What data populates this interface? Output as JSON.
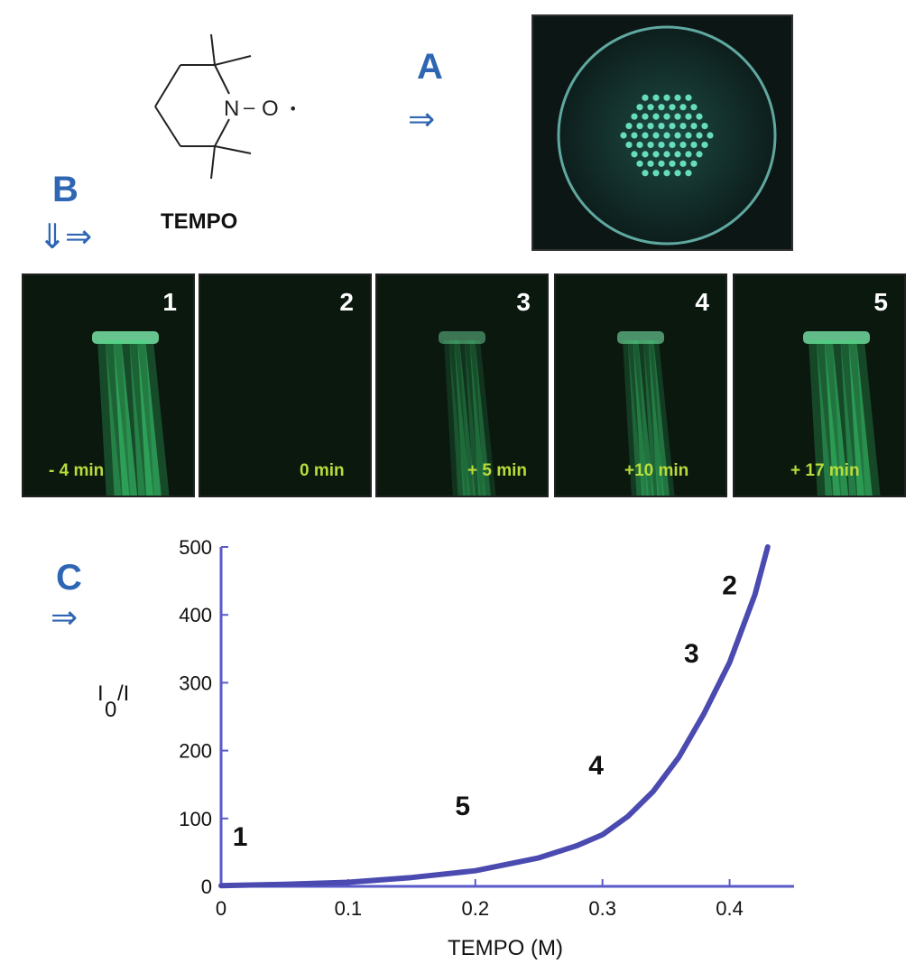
{
  "structure": {
    "label": "TEMPO",
    "atom_n": "N",
    "atom_o": "O",
    "bond_dash": "–",
    "radical_dot": "•"
  },
  "sections": {
    "a": "A",
    "b": "B",
    "c": "C"
  },
  "arrows": {
    "right": "⇒",
    "down": "⇓"
  },
  "panels": [
    {
      "number": "1",
      "time": "- 4 min",
      "glow": 1.0
    },
    {
      "number": "2",
      "time": "0 min",
      "glow": 0.0
    },
    {
      "number": "3",
      "time": "+ 5 min",
      "glow": 0.55
    },
    {
      "number": "4",
      "time": "+10 min",
      "glow": 0.7
    },
    {
      "number": "5",
      "time": "+ 17 min",
      "glow": 0.95
    }
  ],
  "colors": {
    "accent_blue": "#2f66b3",
    "curve": "#4a4ab0",
    "axis": "#5a5ac8",
    "fluorescence": "#3fe07a",
    "time_label": "#b9dc3a"
  },
  "chart_data": {
    "type": "line",
    "xlabel": "TEMPO (M)",
    "ylabel_main": "I",
    "ylabel_sub": "0",
    "ylabel_tail": "/I",
    "xlim": [
      0,
      0.45
    ],
    "ylim": [
      0,
      500
    ],
    "x_ticks": [
      0,
      0.1,
      0.2,
      0.3,
      0.4
    ],
    "x_tick_labels": [
      "0",
      "0.1",
      "0.2",
      "0.3",
      "0.4"
    ],
    "y_ticks": [
      0,
      100,
      200,
      300,
      400,
      500
    ],
    "y_tick_labels": [
      "0",
      "100",
      "200",
      "300",
      "400",
      "500"
    ],
    "series": [
      {
        "x": [
          0,
          0.05,
          0.1,
          0.15,
          0.2,
          0.25,
          0.28,
          0.3,
          0.32,
          0.34,
          0.36,
          0.38,
          0.4,
          0.42,
          0.43
        ],
        "y": [
          1,
          3,
          6,
          13,
          23,
          42,
          60,
          76,
          103,
          140,
          190,
          255,
          330,
          430,
          500
        ]
      }
    ],
    "annotations": [
      {
        "text": "1",
        "x": 0.015,
        "y": 60
      },
      {
        "text": "5",
        "x": 0.19,
        "y": 105
      },
      {
        "text": "4",
        "x": 0.295,
        "y": 165
      },
      {
        "text": "3",
        "x": 0.37,
        "y": 330
      },
      {
        "text": "2",
        "x": 0.4,
        "y": 430
      }
    ]
  }
}
